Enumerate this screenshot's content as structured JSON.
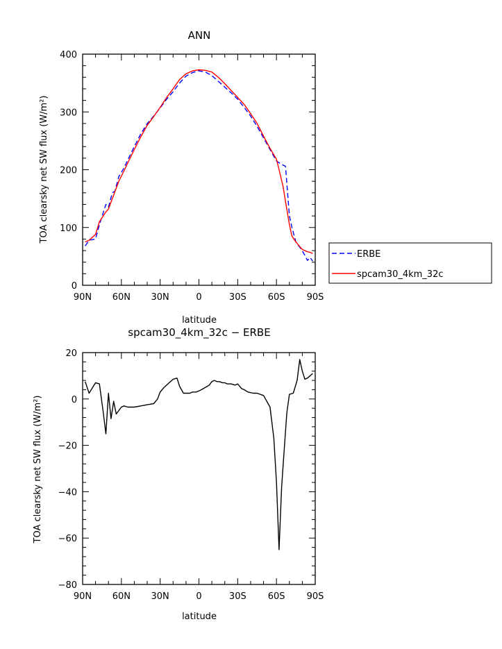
{
  "chart_data": [
    {
      "type": "line",
      "title": "ANN",
      "xlabel": "latitude",
      "ylabel": "TOA clearsky net SW flux (W/m²)",
      "x_ticks": [
        "90N",
        "60N",
        "30N",
        "0",
        "30S",
        "60S",
        "90S"
      ],
      "y_ticks": [
        "0",
        "100",
        "200",
        "300",
        "400"
      ],
      "xlim": [
        90,
        -90
      ],
      "ylim": [
        0,
        400
      ],
      "legend": "right",
      "series": [
        {
          "name": "ERBE",
          "color": "#0000ff",
          "dash": "dashed",
          "x": [
            88,
            85,
            80,
            77,
            72,
            70,
            67,
            65,
            62,
            58,
            55,
            50,
            45,
            40,
            35,
            30,
            25,
            20,
            15,
            10,
            5,
            0,
            -5,
            -10,
            -15,
            -20,
            -25,
            -30,
            -35,
            -40,
            -45,
            -50,
            -55,
            -60,
            -62,
            -65,
            -67,
            -70,
            -72,
            -75,
            -80,
            -84,
            -86,
            -88
          ],
          "y": [
            68,
            78,
            80,
            105,
            140,
            135,
            160,
            163,
            188,
            203,
            217,
            240,
            262,
            280,
            293,
            307,
            322,
            335,
            350,
            362,
            368,
            371,
            369,
            363,
            353,
            343,
            333,
            322,
            308,
            293,
            275,
            255,
            235,
            215,
            212,
            208,
            206,
            120,
            100,
            75,
            60,
            43,
            48,
            42
          ],
          "name_printed": true
        },
        {
          "name": "spcam30_4km_32c",
          "color": "#ff0000",
          "dash": "solid",
          "x": [
            88,
            85,
            80,
            77,
            72,
            70,
            67,
            65,
            62,
            58,
            55,
            50,
            45,
            40,
            35,
            30,
            25,
            20,
            15,
            10,
            5,
            0,
            -5,
            -10,
            -15,
            -20,
            -25,
            -30,
            -35,
            -40,
            -45,
            -50,
            -55,
            -60,
            -62,
            -65,
            -67,
            -70,
            -72,
            -75,
            -80,
            -84,
            -86,
            -88
          ],
          "y": [
            75,
            78,
            88,
            110,
            127,
            132,
            150,
            162,
            180,
            198,
            212,
            235,
            257,
            277,
            292,
            308,
            325,
            340,
            356,
            366,
            371,
            373,
            372,
            369,
            360,
            349,
            337,
            325,
            313,
            297,
            280,
            258,
            237,
            218,
            200,
            172,
            145,
            105,
            85,
            75,
            62,
            58,
            57,
            55
          ]
        }
      ]
    },
    {
      "type": "line",
      "title": "spcam30_4km_32c − ERBE",
      "xlabel": "latitude",
      "ylabel": "TOA clearsky net SW flux (W/m²)",
      "x_ticks": [
        "90N",
        "60N",
        "30N",
        "0",
        "30S",
        "60S",
        "90S"
      ],
      "y_ticks": [
        "−80",
        "−60",
        "−40",
        "−20",
        "0",
        "20"
      ],
      "xlim": [
        90,
        -90
      ],
      "ylim": [
        -80,
        20
      ],
      "series": [
        {
          "color": "#000000",
          "dash": "solid",
          "x": [
            88,
            85,
            80,
            77,
            74,
            72,
            70,
            68,
            66,
            64,
            62,
            60,
            58,
            55,
            50,
            45,
            40,
            35,
            32,
            30,
            27,
            24,
            20,
            17,
            15,
            12,
            10,
            7,
            5,
            2,
            0,
            -2,
            -5,
            -8,
            -10,
            -12,
            -14,
            -16,
            -18,
            -20,
            -22,
            -25,
            -28,
            -30,
            -33,
            -35,
            -38,
            -42,
            -45,
            -50,
            -55,
            -58,
            -60,
            -62,
            -64,
            -66,
            -68,
            -70,
            -73,
            -76,
            -78,
            -80,
            -82,
            -84,
            -86,
            -88
          ],
          "y": [
            7.5,
            2.5,
            7,
            6.5,
            -6,
            -15,
            2.5,
            -8.5,
            -1,
            -6.5,
            -5,
            -3.5,
            -3,
            -3.5,
            -3.5,
            -3,
            -2.5,
            -2,
            0,
            3,
            5,
            6.5,
            8.5,
            9,
            5.5,
            2.5,
            2.5,
            2.5,
            3,
            3,
            3.5,
            4,
            5,
            6,
            7.5,
            8,
            7.5,
            7.5,
            7,
            7,
            6.5,
            6.5,
            6,
            6.5,
            4.5,
            4,
            3,
            2.5,
            2.5,
            1.5,
            -3.5,
            -17,
            -36,
            -65,
            -38,
            -22,
            -6,
            2,
            2.5,
            8,
            17,
            12,
            8.5,
            9,
            10,
            11
          ]
        }
      ]
    }
  ]
}
